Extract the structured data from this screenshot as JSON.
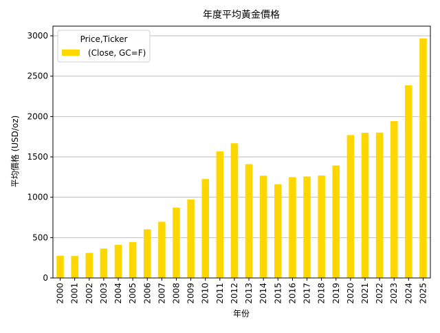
{
  "chart_data": {
    "type": "bar",
    "title": "年度平均黃金價格",
    "xlabel": "年份",
    "ylabel": "平均價格 (USD/oz)",
    "categories": [
      "2000",
      "2001",
      "2002",
      "2003",
      "2004",
      "2005",
      "2006",
      "2007",
      "2008",
      "2009",
      "2010",
      "2011",
      "2012",
      "2013",
      "2014",
      "2015",
      "2016",
      "2017",
      "2018",
      "2019",
      "2020",
      "2021",
      "2022",
      "2023",
      "2024",
      "2025"
    ],
    "series": [
      {
        "name": "(Close, GC=F)",
        "color": "#FFD700",
        "values": [
          275,
          272,
          311,
          364,
          410,
          445,
          603,
          696,
          872,
          973,
          1226,
          1569,
          1669,
          1410,
          1267,
          1160,
          1249,
          1257,
          1269,
          1393,
          1770,
          1799,
          1801,
          1943,
          2387,
          2968
        ]
      }
    ],
    "ylim": [
      0,
      3120
    ],
    "yticks": [
      0,
      500,
      1000,
      1500,
      2000,
      2500,
      3000
    ],
    "grid": "y-major",
    "legend": {
      "title": "Price,Ticker",
      "placement": "top-left"
    }
  }
}
